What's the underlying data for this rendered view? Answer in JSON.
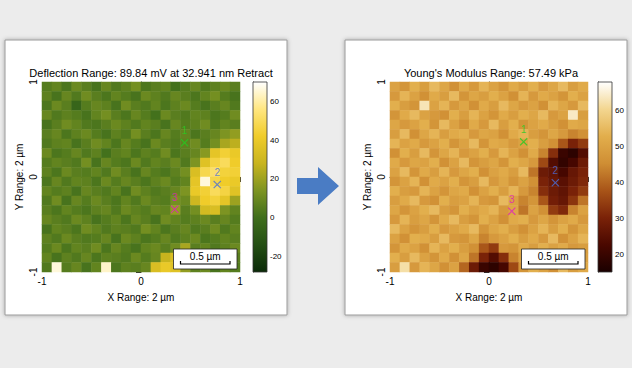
{
  "chart_data": [
    {
      "type": "heatmap",
      "title": "Deflection Range: 89.84 mV at 32.941 nm Retract",
      "x_label": "X Range: 2 µm",
      "y_label": "Y Range: 2 µm",
      "xlim": [
        -1,
        1
      ],
      "ylim": [
        -1,
        1
      ],
      "xticks": [
        -1,
        0,
        1
      ],
      "yticks": [
        -1,
        0,
        1
      ],
      "grid": false,
      "colorbar_range": [
        -28,
        70
      ],
      "colorbar_ticks": [
        -20,
        0,
        20,
        40,
        60
      ],
      "annotations": [
        {
          "text": "1",
          "x": 0.44,
          "y": 0.36,
          "color": "#22cc22"
        },
        {
          "text": "2",
          "x": 0.77,
          "y": -0.08,
          "color": "#4a6fd8"
        },
        {
          "text": "3",
          "x": 0.34,
          "y": -0.34,
          "color": "#e020c0"
        }
      ],
      "scale_bar": {
        "label": "0.5 µm",
        "length": 0.5
      },
      "cells": [
        [
          5,
          8,
          3,
          10,
          6,
          2,
          9,
          4,
          7,
          12,
          3,
          6,
          8,
          1,
          5,
          9,
          4,
          7,
          10,
          6
        ],
        [
          7,
          2,
          9,
          4,
          11,
          6,
          3,
          8,
          5,
          2,
          10,
          7,
          4,
          9,
          6,
          3,
          8,
          12,
          5,
          2
        ],
        [
          3,
          10,
          6,
          -4,
          5,
          9,
          7,
          2,
          11,
          6,
          4,
          8,
          3,
          7,
          10,
          5,
          2,
          6,
          9,
          4
        ],
        [
          9,
          4,
          7,
          5,
          2,
          8,
          12,
          6,
          3,
          9,
          5,
          1,
          10,
          6,
          4,
          8,
          7,
          3,
          5,
          11
        ],
        [
          2,
          6,
          11,
          8,
          4,
          3,
          6,
          10,
          7,
          4,
          8,
          6,
          2,
          9,
          5,
          7,
          11,
          4,
          8,
          6
        ],
        [
          6,
          9,
          3,
          7,
          10,
          5,
          2,
          7,
          4,
          12,
          6,
          3,
          9,
          5,
          8,
          3,
          6,
          9,
          14,
          18
        ],
        [
          4,
          7,
          8,
          2,
          6,
          11,
          8,
          3,
          9,
          5,
          2,
          10,
          6,
          4,
          7,
          11,
          5,
          12,
          22,
          26
        ],
        [
          10,
          3,
          5,
          9,
          4,
          7,
          1,
          6,
          8,
          3,
          7,
          5,
          11,
          3,
          6,
          9,
          16,
          38,
          44,
          40
        ],
        [
          5,
          8,
          6,
          4,
          12,
          2,
          9,
          5,
          3,
          10,
          4,
          8,
          6,
          10,
          4,
          14,
          36,
          46,
          50,
          42
        ],
        [
          7,
          3,
          10,
          6,
          5,
          8,
          4,
          11,
          6,
          2,
          9,
          5,
          3,
          7,
          12,
          34,
          48,
          52,
          45,
          44
        ],
        [
          3,
          9,
          4,
          8,
          7,
          3,
          10,
          5,
          9,
          6,
          3,
          7,
          10,
          5,
          8,
          38,
          66,
          47,
          42,
          40
        ],
        [
          8,
          5,
          7,
          2,
          9,
          6,
          4,
          8,
          2,
          11,
          7,
          4,
          6,
          9,
          14,
          40,
          44,
          50,
          46,
          36
        ],
        [
          4,
          11,
          2,
          9,
          5,
          10,
          6,
          3,
          8,
          4,
          10,
          6,
          5,
          12,
          10,
          30,
          42,
          45,
          38,
          20
        ],
        [
          6,
          3,
          8,
          5,
          3,
          7,
          9,
          4,
          10,
          7,
          5,
          9,
          8,
          18,
          6,
          12,
          32,
          34,
          14,
          8
        ],
        [
          9,
          6,
          4,
          10,
          7,
          2,
          5,
          8,
          3,
          9,
          6,
          2,
          11,
          8,
          5,
          7,
          10,
          6,
          9,
          5
        ],
        [
          2,
          8,
          6,
          3,
          11,
          8,
          4,
          7,
          6,
          4,
          12,
          8,
          3,
          6,
          9,
          4,
          6,
          11,
          4,
          8
        ],
        [
          7,
          4,
          10,
          6,
          4,
          5,
          9,
          2,
          10,
          7,
          3,
          5,
          9,
          4,
          7,
          10,
          3,
          5,
          8,
          6
        ],
        [
          5,
          10,
          3,
          8,
          6,
          11,
          3,
          9,
          5,
          2,
          8,
          10,
          6,
          11,
          22,
          6,
          8,
          4,
          7,
          10
        ],
        [
          8,
          2,
          7,
          4,
          9,
          3,
          7,
          6,
          4,
          10,
          5,
          9,
          28,
          34,
          30,
          12,
          5,
          9,
          3,
          6
        ],
        [
          4,
          66,
          5,
          9,
          2,
          8,
          64,
          3,
          7,
          6,
          9,
          34,
          40,
          36,
          18,
          7,
          10,
          2,
          8,
          5
        ]
      ]
    },
    {
      "type": "heatmap",
      "title": "Young's Modulus Range: 57.49 kPa",
      "x_label": "X Range: 2 µm",
      "y_label": "Y Range: 2 µm",
      "xlim": [
        -1,
        1
      ],
      "ylim": [
        -1,
        1
      ],
      "xticks": [
        -1,
        0,
        1
      ],
      "yticks": [
        -1,
        0,
        1
      ],
      "grid": false,
      "colorbar_range": [
        15,
        68
      ],
      "colorbar_ticks": [
        20,
        30,
        40,
        50,
        60
      ],
      "annotations": [
        {
          "text": "1",
          "x": 0.35,
          "y": 0.37,
          "color": "#22cc22"
        },
        {
          "text": "2",
          "x": 0.67,
          "y": -0.06,
          "color": "#4a6fd8"
        },
        {
          "text": "3",
          "x": 0.23,
          "y": -0.36,
          "color": "#e020c0"
        }
      ],
      "scale_bar": {
        "label": "0.5 µm",
        "length": 0.5
      },
      "cells": [
        [
          50,
          47,
          53,
          49,
          55,
          51,
          46,
          52,
          48,
          54,
          50,
          47,
          52,
          49,
          53,
          48,
          51,
          55,
          49,
          52
        ],
        [
          48,
          54,
          50,
          46,
          52,
          49,
          55,
          47,
          51,
          49,
          53,
          50,
          46,
          54,
          48,
          52,
          50,
          47,
          53,
          50
        ],
        [
          53,
          49,
          47,
          63,
          50,
          54,
          48,
          51,
          46,
          52,
          49,
          55,
          51,
          48,
          50,
          46,
          54,
          51,
          48,
          55
        ],
        [
          47,
          52,
          55,
          50,
          48,
          46,
          53,
          49,
          54,
          50,
          47,
          52,
          49,
          53,
          51,
          55,
          48,
          50,
          64,
          49
        ],
        [
          51,
          48,
          50,
          53,
          47,
          55,
          50,
          46,
          52,
          48,
          55,
          49,
          53,
          47,
          50,
          52,
          49,
          46,
          52,
          51
        ],
        [
          49,
          55,
          46,
          51,
          54,
          49,
          52,
          53,
          48,
          51,
          50,
          46,
          52,
          54,
          49,
          47,
          51,
          48,
          44,
          46
        ],
        [
          54,
          50,
          52,
          48,
          50,
          53,
          47,
          50,
          55,
          47,
          52,
          51,
          48,
          50,
          53,
          49,
          46,
          38,
          30,
          34
        ],
        [
          46,
          53,
          49,
          55,
          47,
          51,
          54,
          48,
          50,
          53,
          48,
          54,
          50,
          46,
          52,
          44,
          32,
          20,
          18,
          24
        ],
        [
          52,
          48,
          51,
          50,
          53,
          46,
          50,
          55,
          47,
          49,
          51,
          47,
          53,
          51,
          48,
          36,
          24,
          19,
          22,
          28
        ],
        [
          50,
          55,
          47,
          52,
          49,
          54,
          48,
          51,
          53,
          46,
          50,
          52,
          49,
          55,
          42,
          28,
          26,
          22,
          27,
          30
        ],
        [
          47,
          50,
          54,
          46,
          52,
          50,
          53,
          47,
          49,
          55,
          48,
          51,
          47,
          50,
          46,
          30,
          27,
          25,
          28,
          31
        ],
        [
          53,
          49,
          48,
          54,
          50,
          47,
          51,
          52,
          46,
          50,
          53,
          49,
          54,
          48,
          44,
          32,
          28,
          26,
          30,
          34
        ],
        [
          49,
          52,
          55,
          48,
          46,
          53,
          49,
          50,
          54,
          48,
          47,
          55,
          50,
          44,
          47,
          38,
          29,
          27,
          33,
          42
        ],
        [
          51,
          47,
          50,
          53,
          55,
          49,
          47,
          53,
          50,
          52,
          54,
          48,
          51,
          42,
          50,
          46,
          34,
          31,
          44,
          50
        ],
        [
          48,
          54,
          49,
          51,
          47,
          52,
          55,
          49,
          47,
          53,
          50,
          46,
          52,
          53,
          48,
          51,
          47,
          50,
          52,
          48
        ],
        [
          55,
          50,
          47,
          49,
          53,
          48,
          50,
          52,
          55,
          47,
          51,
          53,
          49,
          46,
          50,
          54,
          49,
          53,
          47,
          51
        ],
        [
          50,
          46,
          53,
          52,
          49,
          55,
          48,
          47,
          51,
          44,
          48,
          50,
          53,
          49,
          52,
          48,
          55,
          46,
          50,
          54
        ],
        [
          47,
          52,
          50,
          46,
          54,
          50,
          53,
          49,
          46,
          38,
          34,
          48,
          47,
          52,
          49,
          53,
          50,
          52,
          48,
          49
        ],
        [
          53,
          49,
          55,
          50,
          47,
          52,
          46,
          51,
          42,
          30,
          24,
          32,
          44,
          50,
          46,
          49,
          52,
          48,
          54,
          50
        ],
        [
          49,
          62,
          48,
          54,
          51,
          46,
          50,
          40,
          28,
          20,
          18,
          22,
          36,
          47,
          53,
          50,
          46,
          55,
          49,
          52
        ]
      ]
    }
  ]
}
